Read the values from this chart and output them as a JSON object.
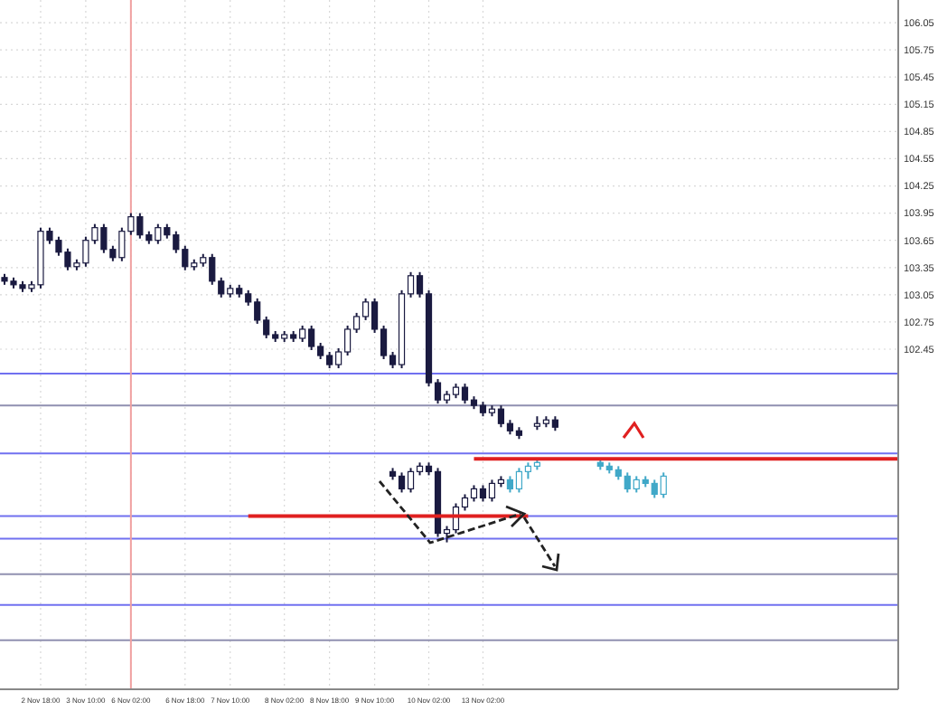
{
  "chart_data": {
    "type": "candlestick",
    "ylim": [
      98.7,
      106.3
    ],
    "yticks": [
      106.05,
      105.75,
      105.45,
      105.15,
      104.85,
      104.55,
      104.25,
      103.95,
      103.65,
      103.35,
      103.05,
      102.75,
      102.45
    ],
    "categories": [
      null,
      null,
      null,
      null,
      "2 Nov 18:00",
      null,
      null,
      null,
      null,
      "3 Nov 10:00",
      null,
      null,
      null,
      null,
      "6 Nov 02:00",
      null,
      null,
      null,
      null,
      null,
      "6 Nov 18:00",
      null,
      null,
      null,
      null,
      "7 Nov 10:00",
      null,
      null,
      null,
      null,
      null,
      "8 Nov 02:00",
      null,
      null,
      null,
      null,
      "8 Nov 18:00",
      null,
      null,
      null,
      null,
      "9 Nov 10:00",
      null,
      null,
      null,
      null,
      null,
      "10 Nov 02:00",
      null,
      null,
      null,
      null,
      null,
      "13 Nov 02:00",
      null,
      null,
      null,
      null,
      null,
      null,
      null,
      null,
      null,
      null,
      null,
      null,
      null,
      null,
      null,
      null,
      null,
      null,
      null,
      null,
      null,
      null,
      null,
      null,
      null,
      null,
      null,
      null,
      null,
      null,
      null,
      null,
      null,
      null,
      null,
      null,
      null,
      null,
      null,
      null,
      null,
      null,
      null,
      null,
      null,
      null
    ],
    "grid": true,
    "series": [
      {
        "color": "#1a1a40",
        "ohlc": [
          [
            103.24,
            103.28,
            103.16,
            103.2
          ],
          [
            103.2,
            103.24,
            103.12,
            103.16
          ],
          [
            103.16,
            103.2,
            103.08,
            103.12
          ],
          [
            103.12,
            103.2,
            103.08,
            103.16
          ],
          [
            103.16,
            103.79,
            103.12,
            103.75
          ],
          [
            103.75,
            103.79,
            103.61,
            103.65
          ],
          [
            103.65,
            103.69,
            103.48,
            103.52
          ],
          [
            103.52,
            103.56,
            103.32,
            103.36
          ],
          [
            103.36,
            103.44,
            103.32,
            103.4
          ],
          [
            103.4,
            103.69,
            103.36,
            103.65
          ],
          [
            103.65,
            103.83,
            103.61,
            103.79
          ],
          [
            103.79,
            103.83,
            103.51,
            103.55
          ],
          [
            103.55,
            103.59,
            103.42,
            103.46
          ],
          [
            103.46,
            103.79,
            103.42,
            103.75
          ],
          [
            103.75,
            103.95,
            103.71,
            103.91
          ],
          [
            103.91,
            103.95,
            103.67,
            103.71
          ],
          [
            103.71,
            103.75,
            103.61,
            103.65
          ],
          [
            103.65,
            103.83,
            103.61,
            103.79
          ],
          [
            103.79,
            103.83,
            103.67,
            103.71
          ],
          [
            103.71,
            103.75,
            103.51,
            103.55
          ],
          [
            103.55,
            103.59,
            103.32,
            103.36
          ],
          [
            103.36,
            103.44,
            103.32,
            103.4
          ],
          [
            103.4,
            103.5,
            103.36,
            103.46
          ],
          [
            103.46,
            103.5,
            103.16,
            103.2
          ],
          [
            103.2,
            103.24,
            103.02,
            103.06
          ],
          [
            103.06,
            103.16,
            103.02,
            103.12
          ],
          [
            103.12,
            103.16,
            103.02,
            103.06
          ],
          [
            103.06,
            103.1,
            102.93,
            102.97
          ],
          [
            102.97,
            103.01,
            102.73,
            102.77
          ],
          [
            102.77,
            102.81,
            102.57,
            102.61
          ],
          [
            102.61,
            102.65,
            102.53,
            102.57
          ],
          [
            102.57,
            102.65,
            102.53,
            102.61
          ],
          [
            102.61,
            102.65,
            102.53,
            102.57
          ],
          [
            102.57,
            102.71,
            102.53,
            102.67
          ],
          [
            102.67,
            102.71,
            102.44,
            102.48
          ],
          [
            102.48,
            102.52,
            102.34,
            102.38
          ],
          [
            102.38,
            102.42,
            102.24,
            102.28
          ],
          [
            102.28,
            102.46,
            102.24,
            102.42
          ],
          [
            102.42,
            102.71,
            102.38,
            102.67
          ],
          [
            102.67,
            102.85,
            102.63,
            102.81
          ],
          [
            102.81,
            103.01,
            102.77,
            102.97
          ],
          [
            102.97,
            103.01,
            102.63,
            102.67
          ],
          [
            102.67,
            102.71,
            102.34,
            102.38
          ],
          [
            102.38,
            102.42,
            102.24,
            102.28
          ],
          [
            102.28,
            103.1,
            102.24,
            103.06
          ],
          [
            103.06,
            103.3,
            103.02,
            103.26
          ],
          [
            103.26,
            103.3,
            103.02,
            103.06
          ],
          [
            103.06,
            103.1,
            102.04,
            102.08
          ],
          [
            102.08,
            102.12,
            101.85,
            101.89
          ],
          [
            101.89,
            101.99,
            101.85,
            101.95
          ],
          [
            101.95,
            102.07,
            101.91,
            102.03
          ],
          [
            102.03,
            102.07,
            101.85,
            101.89
          ],
          [
            101.89,
            101.93,
            101.79,
            101.83
          ],
          [
            101.83,
            101.87,
            101.71,
            101.75
          ],
          [
            101.75,
            101.83,
            101.71,
            101.79
          ],
          [
            101.79,
            101.83,
            101.59,
            101.63
          ],
          [
            101.63,
            101.67,
            101.51,
            101.55
          ],
          [
            101.55,
            101.59,
            101.46,
            101.5
          ],
          null,
          [
            101.6,
            101.71,
            101.56,
            101.63
          ],
          [
            101.63,
            101.71,
            101.59,
            101.67
          ],
          [
            101.67,
            101.71,
            101.55,
            101.59
          ],
          null,
          null,
          null,
          null,
          null,
          null,
          null,
          null,
          null,
          null,
          null,
          null,
          null,
          null,
          null,
          null,
          null,
          null,
          null,
          null,
          null,
          null,
          null,
          null,
          null,
          null,
          null,
          null,
          null,
          null,
          null,
          null,
          null,
          null,
          null,
          null,
          null,
          null
        ]
      },
      {
        "color": "#1a1a40",
        "ohlc": [
          null,
          null,
          null,
          null,
          null,
          null,
          null,
          null,
          null,
          null,
          null,
          null,
          null,
          null,
          null,
          null,
          null,
          null,
          null,
          null,
          null,
          null,
          null,
          null,
          null,
          null,
          null,
          null,
          null,
          null,
          null,
          null,
          null,
          null,
          null,
          null,
          null,
          null,
          null,
          null,
          null,
          null,
          null,
          [
            101.1,
            101.14,
            101.01,
            101.05
          ],
          [
            101.05,
            101.09,
            100.87,
            100.91
          ],
          [
            100.91,
            101.14,
            100.87,
            101.1
          ],
          [
            101.1,
            101.2,
            101.06,
            101.16
          ],
          [
            101.16,
            101.2,
            101.06,
            101.1
          ],
          [
            101.1,
            101.14,
            100.38,
            100.42
          ],
          [
            100.42,
            100.5,
            100.32,
            100.46
          ],
          [
            100.46,
            100.75,
            100.42,
            100.71
          ],
          [
            100.71,
            100.85,
            100.67,
            100.81
          ],
          [
            100.81,
            100.95,
            100.77,
            100.91
          ],
          [
            100.91,
            100.95,
            100.77,
            100.81
          ],
          [
            100.81,
            101.01,
            100.77,
            100.97
          ],
          [
            100.97,
            101.05,
            100.93,
            101.01
          ],
          null,
          null,
          null,
          null,
          null,
          null,
          null,
          null,
          null,
          null,
          null,
          null,
          null,
          null,
          null,
          null,
          null,
          null,
          null,
          null,
          null,
          null,
          null,
          null,
          null,
          null,
          null,
          null,
          null,
          null,
          null,
          null,
          null,
          null,
          null,
          null,
          null,
          null,
          null,
          null,
          null,
          null,
          null,
          null
        ]
      },
      {
        "color": "#40a8c8",
        "ohlc": [
          null,
          null,
          null,
          null,
          null,
          null,
          null,
          null,
          null,
          null,
          null,
          null,
          null,
          null,
          null,
          null,
          null,
          null,
          null,
          null,
          null,
          null,
          null,
          null,
          null,
          null,
          null,
          null,
          null,
          null,
          null,
          null,
          null,
          null,
          null,
          null,
          null,
          null,
          null,
          null,
          null,
          null,
          null,
          null,
          null,
          null,
          null,
          null,
          null,
          null,
          null,
          null,
          null,
          null,
          null,
          null,
          [
            101.01,
            101.05,
            100.87,
            100.91
          ],
          [
            100.91,
            101.14,
            100.87,
            101.1
          ],
          [
            101.1,
            101.2,
            101.02,
            101.16
          ],
          [
            101.16,
            101.24,
            101.12,
            101.2
          ],
          null,
          null,
          null,
          null,
          null,
          null,
          [
            101.2,
            101.24,
            101.12,
            101.16
          ],
          [
            101.16,
            101.2,
            101.08,
            101.12
          ],
          [
            101.12,
            101.16,
            101.01,
            101.05
          ],
          [
            101.05,
            101.09,
            100.87,
            100.91
          ],
          [
            100.91,
            101.05,
            100.87,
            101.01
          ],
          [
            101.01,
            101.05,
            100.93,
            100.97
          ],
          [
            100.97,
            101.01,
            100.81,
            100.85
          ],
          [
            100.85,
            101.09,
            100.81,
            101.05
          ],
          null,
          null,
          null,
          null,
          null,
          null,
          null,
          null,
          null,
          null,
          null,
          null,
          null,
          null,
          null,
          null,
          null,
          null,
          null,
          null,
          null,
          null,
          null,
          null,
          null,
          null
        ]
      },
      {
        "type": "line",
        "color": "#e02020",
        "values": [
          null,
          null,
          null,
          null,
          null,
          null,
          null,
          null,
          null,
          null,
          null,
          null,
          null,
          null,
          null,
          null,
          null,
          null,
          null,
          null,
          null,
          null,
          null,
          null,
          null,
          null,
          null,
          null,
          null,
          null,
          null,
          null,
          null,
          null,
          null,
          null,
          null,
          null,
          null,
          null,
          null,
          null,
          null,
          null,
          null,
          null,
          null,
          null,
          null,
          null,
          null,
          null,
          101.24,
          101.24,
          101.24,
          101.24,
          101.24,
          101.24,
          101.24,
          101.24,
          101.24,
          101.24,
          101.24,
          101.24,
          101.24,
          101.24,
          101.24,
          101.24,
          101.24,
          101.24,
          101.24,
          101.24,
          101.24,
          101.24,
          101.24,
          101.24,
          101.24,
          101.24,
          101.24,
          101.24,
          101.24,
          101.24,
          101.24,
          101.24,
          101.24,
          101.24,
          101.24,
          101.24,
          101.24,
          101.24,
          101.24,
          101.24,
          101.24,
          101.24,
          101.24,
          101.24,
          101.24,
          101.24,
          101.24,
          101.24
        ]
      },
      {
        "type": "line",
        "color": "#e02020",
        "values": [
          null,
          null,
          null,
          null,
          null,
          null,
          null,
          null,
          null,
          null,
          null,
          null,
          null,
          null,
          null,
          null,
          null,
          null,
          null,
          null,
          null,
          null,
          null,
          null,
          null,
          null,
          null,
          100.61,
          100.61,
          100.61,
          100.61,
          100.61,
          100.61,
          100.61,
          100.61,
          100.61,
          100.61,
          100.61,
          100.61,
          100.61,
          100.61,
          100.61,
          100.61,
          100.61,
          100.61,
          100.61,
          100.61,
          100.61,
          100.61,
          100.61,
          100.61,
          100.61,
          100.61,
          100.61,
          100.61,
          100.61,
          100.61,
          100.61,
          100.61,
          null,
          null,
          null,
          null,
          null,
          null,
          null,
          null,
          null,
          null,
          null,
          null,
          null,
          null,
          null,
          null,
          null,
          null,
          null,
          null,
          null,
          null,
          null,
          null,
          null,
          null,
          null,
          null,
          null,
          null,
          null,
          null,
          null,
          null,
          null,
          null,
          null,
          null,
          null,
          null,
          null
        ]
      }
    ],
    "ref_lines": [
      {
        "axis": "y",
        "value": 102.18,
        "color": "#7070f0"
      },
      {
        "axis": "y",
        "value": 101.83,
        "color": "#9090b0"
      },
      {
        "axis": "y",
        "value": 101.3,
        "color": "#7070f0"
      },
      {
        "axis": "y",
        "value": 100.61,
        "color": "#7070f0"
      },
      {
        "axis": "y",
        "value": 100.36,
        "color": "#7070f0"
      },
      {
        "axis": "y",
        "value": 99.97,
        "color": "#9090b0"
      },
      {
        "axis": "y",
        "value": 99.63,
        "color": "#7070f0"
      },
      {
        "axis": "y",
        "value": 99.24,
        "color": "#9090b0"
      },
      {
        "axis": "x",
        "value": "6 Nov 02:00",
        "color": "#f0a0a0"
      }
    ]
  }
}
